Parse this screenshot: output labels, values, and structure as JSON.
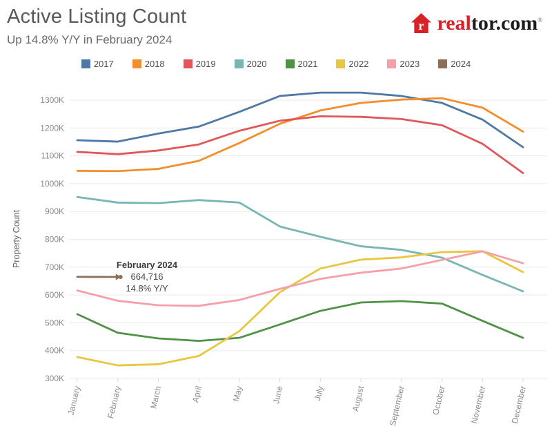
{
  "header": {
    "title": "Active Listing Count",
    "subtitle": "Up 14.8% Y/Y in February 2024"
  },
  "logo": {
    "brand_red": "real",
    "brand_dark": "tor.com",
    "registered_mark": "®"
  },
  "chart_data": {
    "type": "line",
    "title": "Active Listing Count",
    "subtitle": "Up 14.8% Y/Y in February 2024",
    "xlabel": "",
    "ylabel": "Property Count",
    "values_unit": "thousands of properties (K)",
    "grid": "horizontal",
    "legend_position": "top",
    "ylim": [
      300,
      1300
    ],
    "y_tick_labels": [
      "300K",
      "400K",
      "500K",
      "600K",
      "700K",
      "800K",
      "900K",
      "1000K",
      "1100K",
      "1200K",
      "1300K"
    ],
    "categories": [
      "January",
      "February",
      "March",
      "April",
      "May",
      "June",
      "July",
      "August",
      "September",
      "October",
      "November",
      "December"
    ],
    "series": [
      {
        "name": "2017",
        "color": "#4e79a7",
        "values": [
          1156,
          1151,
          1180,
          1205,
          1258,
          1315,
          1327,
          1327,
          1315,
          1290,
          1230,
          1131
        ]
      },
      {
        "name": "2018",
        "color": "#f28e2b",
        "values": [
          1046,
          1045,
          1053,
          1082,
          1146,
          1215,
          1263,
          1290,
          1302,
          1307,
          1273,
          1187
        ]
      },
      {
        "name": "2019",
        "color": "#e15759",
        "values": [
          1114,
          1106,
          1119,
          1141,
          1190,
          1226,
          1242,
          1240,
          1232,
          1210,
          1143,
          1038
        ]
      },
      {
        "name": "2020",
        "color": "#76b7b2",
        "values": [
          952,
          932,
          930,
          941,
          932,
          846,
          809,
          775,
          762,
          734,
          672,
          613
        ]
      },
      {
        "name": "2021",
        "color": "#4f9245",
        "values": [
          531,
          464,
          444,
          435,
          446,
          494,
          543,
          573,
          578,
          569,
          507,
          446
        ]
      },
      {
        "name": "2022",
        "color": "#e8c63f",
        "values": [
          377,
          347,
          351,
          381,
          470,
          610,
          695,
          727,
          735,
          754,
          757,
          682
        ]
      },
      {
        "name": "2023",
        "color": "#f79fa9",
        "values": [
          616,
          579,
          563,
          561,
          582,
          622,
          658,
          680,
          695,
          726,
          757,
          714
        ]
      },
      {
        "name": "2024",
        "color": "#8f6e58",
        "values": [
          665,
          664.716,
          null,
          null,
          null,
          null,
          null,
          null,
          null,
          null,
          null,
          null
        ]
      }
    ],
    "annotation": {
      "series": "2024",
      "month": "February",
      "label": "February 2024",
      "value": "664,716",
      "yoy": "14.8% Y/Y"
    }
  }
}
